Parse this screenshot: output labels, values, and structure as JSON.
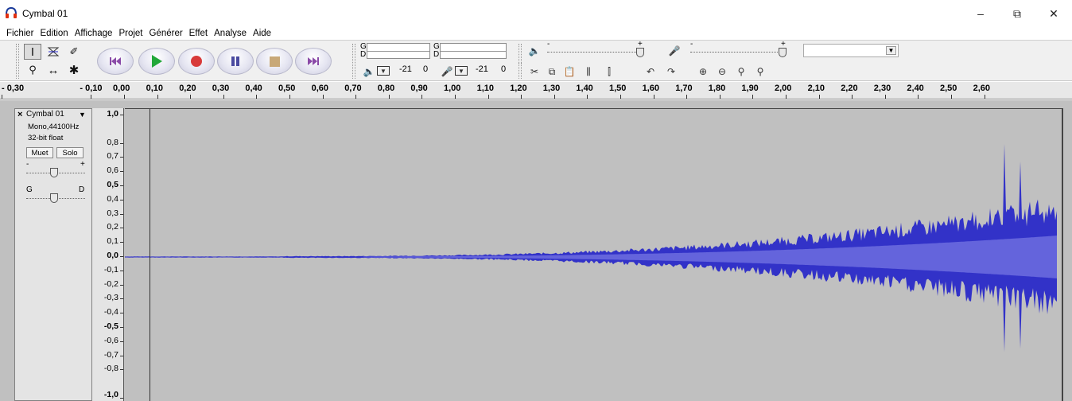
{
  "window": {
    "title": "Cymbal 01",
    "controls": {
      "minimize": "–",
      "maximize": "⧉",
      "close": "✕"
    }
  },
  "menu": [
    "Fichier",
    "Edition",
    "Affichage",
    "Projet",
    "Générer",
    "Effet",
    "Analyse",
    "Aide"
  ],
  "meters": {
    "playback": {
      "left_label": "G",
      "right_label": "D",
      "gain_label": "-21",
      "zero_label": "0"
    },
    "record": {
      "left_label": "G",
      "right_label": "D",
      "gain_label": "-21",
      "zero_label": "0"
    }
  },
  "mixer": {
    "playback_min": "-",
    "playback_max": "+",
    "record_min": "-",
    "record_max": "+"
  },
  "ruler": {
    "labels": [
      "- 0,30",
      "- 0,10",
      "0,00",
      "0,10",
      "0,20",
      "0,30",
      "0,40",
      "0,50",
      "0,60",
      "0,70",
      "0,80",
      "0,90",
      "1,00",
      "1,10",
      "1,20",
      "1,30",
      "1,40",
      "1,50",
      "1,60",
      "1,70",
      "1,80",
      "1,90",
      "2,00",
      "2,10",
      "2,20",
      "2,30",
      "2,40",
      "2,50",
      "2,60"
    ]
  },
  "track": {
    "close": "×",
    "name": "Cymbal 01",
    "menu_arrow": "▼",
    "format": "Mono,44100Hz",
    "bitdepth": "32-bit float",
    "mute": "Muet",
    "solo": "Solo",
    "gain_min": "-",
    "gain_max": "+",
    "pan_left": "G",
    "pan_right": "D"
  },
  "vertical_ruler": [
    "1,0",
    "0,8",
    "0,7",
    "0,6",
    "0,5",
    "0,4",
    "0,3",
    "0,2",
    "0,1",
    "0,0",
    "-0,1",
    "-0,2",
    "-0,3",
    "-0,4",
    "-0,5",
    "-0,6",
    "-0,7",
    "-0,8",
    "-1,0"
  ],
  "colors": {
    "waveform": "#3232c8",
    "waveform_rms": "#6464dc",
    "background": "#c0c0c0"
  }
}
